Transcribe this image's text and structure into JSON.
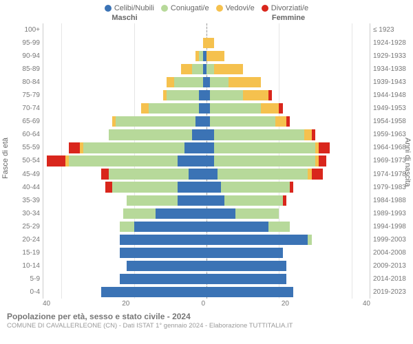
{
  "chart": {
    "type": "population-pyramid",
    "legend": [
      {
        "label": "Celibi/Nubili",
        "color": "#3b73b5"
      },
      {
        "label": "Coniugati/e",
        "color": "#b7d99a"
      },
      {
        "label": "Vedovi/e",
        "color": "#f5c14e"
      },
      {
        "label": "Divorziati/e",
        "color": "#d9261c"
      }
    ],
    "header_male": "Maschi",
    "header_female": "Femmine",
    "y_left_label": "Fasce di età",
    "y_right_label": "Anni di nascita",
    "x_max": 45,
    "x_ticks": [
      40,
      20,
      0,
      20,
      40
    ],
    "grid_positions_pct": [
      5.56,
      27.78,
      50,
      72.22,
      94.44
    ],
    "grid_color": "#e5e5e5",
    "center_line_color": "#999999",
    "background_color": "#ffffff",
    "tick_fontsize": 10,
    "label_fontsize": 11,
    "title": "Popolazione per età, sesso e stato civile - 2024",
    "subtitle": "COMUNE DI CAVALLERLEONE (CN) - Dati ISTAT 1° gennaio 2024 - Elaborazione TUTTITALIA.IT",
    "rows": [
      {
        "age": "100+",
        "birth": "≤ 1923",
        "m": {
          "c": 0,
          "co": 0,
          "v": 0,
          "d": 0
        },
        "f": {
          "c": 0,
          "co": 0,
          "v": 0,
          "d": 0
        }
      },
      {
        "age": "95-99",
        "birth": "1924-1928",
        "m": {
          "c": 0,
          "co": 0,
          "v": 1,
          "d": 0
        },
        "f": {
          "c": 0,
          "co": 0,
          "v": 2,
          "d": 0
        }
      },
      {
        "age": "90-94",
        "birth": "1929-1933",
        "m": {
          "c": 1,
          "co": 1,
          "v": 1,
          "d": 0
        },
        "f": {
          "c": 0,
          "co": 0,
          "v": 5,
          "d": 0
        }
      },
      {
        "age": "85-89",
        "birth": "1934-1938",
        "m": {
          "c": 1,
          "co": 3,
          "v": 3,
          "d": 0
        },
        "f": {
          "c": 0,
          "co": 2,
          "v": 8,
          "d": 0
        }
      },
      {
        "age": "80-84",
        "birth": "1939-1943",
        "m": {
          "c": 1,
          "co": 8,
          "v": 2,
          "d": 0
        },
        "f": {
          "c": 1,
          "co": 5,
          "v": 9,
          "d": 0
        }
      },
      {
        "age": "75-79",
        "birth": "1944-1948",
        "m": {
          "c": 2,
          "co": 9,
          "v": 1,
          "d": 0
        },
        "f": {
          "c": 1,
          "co": 9,
          "v": 7,
          "d": 1
        }
      },
      {
        "age": "70-74",
        "birth": "1949-1953",
        "m": {
          "c": 2,
          "co": 14,
          "v": 2,
          "d": 0
        },
        "f": {
          "c": 1,
          "co": 14,
          "v": 5,
          "d": 1
        }
      },
      {
        "age": "65-69",
        "birth": "1954-1958",
        "m": {
          "c": 3,
          "co": 22,
          "v": 1,
          "d": 0
        },
        "f": {
          "c": 1,
          "co": 18,
          "v": 3,
          "d": 1
        }
      },
      {
        "age": "60-64",
        "birth": "1959-1963",
        "m": {
          "c": 4,
          "co": 23,
          "v": 0,
          "d": 0
        },
        "f": {
          "c": 2,
          "co": 25,
          "v": 2,
          "d": 1
        }
      },
      {
        "age": "55-59",
        "birth": "1964-1968",
        "m": {
          "c": 6,
          "co": 28,
          "v": 1,
          "d": 3
        },
        "f": {
          "c": 2,
          "co": 28,
          "v": 1,
          "d": 3
        }
      },
      {
        "age": "50-54",
        "birth": "1969-1973",
        "m": {
          "c": 8,
          "co": 30,
          "v": 1,
          "d": 5
        },
        "f": {
          "c": 2,
          "co": 28,
          "v": 1,
          "d": 2
        }
      },
      {
        "age": "45-49",
        "birth": "1974-1978",
        "m": {
          "c": 5,
          "co": 22,
          "v": 0,
          "d": 2
        },
        "f": {
          "c": 3,
          "co": 25,
          "v": 1,
          "d": 3
        }
      },
      {
        "age": "40-44",
        "birth": "1979-1983",
        "m": {
          "c": 8,
          "co": 18,
          "v": 0,
          "d": 2
        },
        "f": {
          "c": 4,
          "co": 19,
          "v": 0,
          "d": 1
        }
      },
      {
        "age": "35-39",
        "birth": "1984-1988",
        "m": {
          "c": 8,
          "co": 14,
          "v": 0,
          "d": 0
        },
        "f": {
          "c": 5,
          "co": 16,
          "v": 0,
          "d": 1
        }
      },
      {
        "age": "30-34",
        "birth": "1989-1993",
        "m": {
          "c": 14,
          "co": 9,
          "v": 0,
          "d": 0
        },
        "f": {
          "c": 8,
          "co": 12,
          "v": 0,
          "d": 0
        }
      },
      {
        "age": "25-29",
        "birth": "1994-1998",
        "m": {
          "c": 20,
          "co": 4,
          "v": 0,
          "d": 0
        },
        "f": {
          "c": 17,
          "co": 6,
          "v": 0,
          "d": 0
        }
      },
      {
        "age": "20-24",
        "birth": "1999-2003",
        "m": {
          "c": 24,
          "co": 0,
          "v": 0,
          "d": 0
        },
        "f": {
          "c": 28,
          "co": 1,
          "v": 0,
          "d": 0
        }
      },
      {
        "age": "15-19",
        "birth": "2004-2008",
        "m": {
          "c": 24,
          "co": 0,
          "v": 0,
          "d": 0
        },
        "f": {
          "c": 21,
          "co": 0,
          "v": 0,
          "d": 0
        }
      },
      {
        "age": "10-14",
        "birth": "2009-2013",
        "m": {
          "c": 22,
          "co": 0,
          "v": 0,
          "d": 0
        },
        "f": {
          "c": 22,
          "co": 0,
          "v": 0,
          "d": 0
        }
      },
      {
        "age": "5-9",
        "birth": "2014-2018",
        "m": {
          "c": 24,
          "co": 0,
          "v": 0,
          "d": 0
        },
        "f": {
          "c": 22,
          "co": 0,
          "v": 0,
          "d": 0
        }
      },
      {
        "age": "0-4",
        "birth": "2019-2023",
        "m": {
          "c": 29,
          "co": 0,
          "v": 0,
          "d": 0
        },
        "f": {
          "c": 24,
          "co": 0,
          "v": 0,
          "d": 0
        }
      }
    ]
  }
}
